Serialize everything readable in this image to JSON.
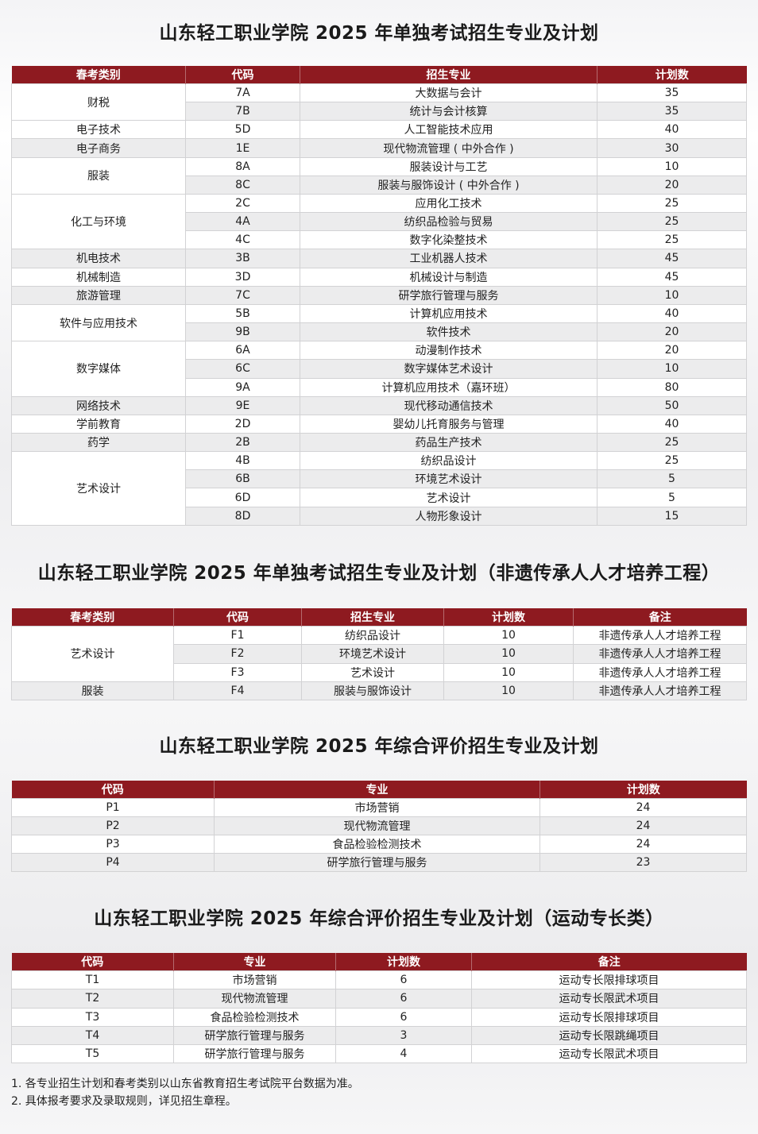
{
  "sections": [
    {
      "title": "山东轻工职业学院 2025 年单独考试招生专业及计划",
      "headers": [
        "春考类别",
        "代码",
        "招生专业",
        "计划数"
      ],
      "groups": [
        {
          "category": "财税",
          "items": [
            [
              "7A",
              "大数据与会计",
              "35"
            ],
            [
              "7B",
              "统计与会计核算",
              "35"
            ]
          ]
        },
        {
          "category": "电子技术",
          "items": [
            [
              "5D",
              "人工智能技术应用",
              "40"
            ]
          ]
        },
        {
          "category": "电子商务",
          "items": [
            [
              "1E",
              "现代物流管理 ( 中外合作 )",
              "30"
            ]
          ]
        },
        {
          "category": "服装",
          "items": [
            [
              "8A",
              "服装设计与工艺",
              "10"
            ],
            [
              "8C",
              "服装与服饰设计 ( 中外合作 )",
              "20"
            ]
          ]
        },
        {
          "category": "化工与环境",
          "items": [
            [
              "2C",
              "应用化工技术",
              "25"
            ],
            [
              "4A",
              "纺织品检验与贸易",
              "25"
            ],
            [
              "4C",
              "数字化染整技术",
              "25"
            ]
          ]
        },
        {
          "category": "机电技术",
          "items": [
            [
              "3B",
              "工业机器人技术",
              "45"
            ]
          ]
        },
        {
          "category": "机械制造",
          "items": [
            [
              "3D",
              "机械设计与制造",
              "45"
            ]
          ]
        },
        {
          "category": "旅游管理",
          "items": [
            [
              "7C",
              "研学旅行管理与服务",
              "10"
            ]
          ]
        },
        {
          "category": "软件与应用技术",
          "items": [
            [
              "5B",
              "计算机应用技术",
              "40"
            ],
            [
              "9B",
              "软件技术",
              "20"
            ]
          ]
        },
        {
          "category": "数字媒体",
          "items": [
            [
              "6A",
              "动漫制作技术",
              "20"
            ],
            [
              "6C",
              "数字媒体艺术设计",
              "10"
            ],
            [
              "9A",
              "计算机应用技术（嘉环班）",
              "80"
            ]
          ]
        },
        {
          "category": "网络技术",
          "items": [
            [
              "9E",
              "现代移动通信技术",
              "50"
            ]
          ]
        },
        {
          "category": "学前教育",
          "items": [
            [
              "2D",
              "婴幼儿托育服务与管理",
              "40"
            ]
          ]
        },
        {
          "category": "药学",
          "items": [
            [
              "2B",
              "药品生产技术",
              "25"
            ]
          ]
        },
        {
          "category": "艺术设计",
          "items": [
            [
              "4B",
              "纺织品设计",
              "25"
            ],
            [
              "6B",
              "环境艺术设计",
              "5"
            ],
            [
              "6D",
              "艺术设计",
              "5"
            ],
            [
              "8D",
              "人物形象设计",
              "15"
            ]
          ]
        }
      ]
    },
    {
      "title": "山东轻工职业学院 2025 年单独考试招生专业及计划（非遗传承人人才培养工程）",
      "headers": [
        "春考类别",
        "代码",
        "招生专业",
        "计划数",
        "备注"
      ],
      "groups": [
        {
          "category": "艺术设计",
          "items": [
            [
              "F1",
              "纺织品设计",
              "10",
              "非遗传承人人才培养工程"
            ],
            [
              "F2",
              "环境艺术设计",
              "10",
              "非遗传承人人才培养工程"
            ],
            [
              "F3",
              "艺术设计",
              "10",
              "非遗传承人人才培养工程"
            ]
          ]
        },
        {
          "category": "服装",
          "items": [
            [
              "F4",
              "服装与服饰设计",
              "10",
              "非遗传承人人才培养工程"
            ]
          ]
        }
      ]
    },
    {
      "title": "山东轻工职业学院 2025 年综合评价招生专业及计划",
      "headers": [
        "代码",
        "专业",
        "计划数"
      ],
      "rows": [
        [
          "P1",
          "市场营销",
          "24"
        ],
        [
          "P2",
          "现代物流管理",
          "24"
        ],
        [
          "P3",
          "食品检验检测技术",
          "24"
        ],
        [
          "P4",
          "研学旅行管理与服务",
          "23"
        ]
      ]
    },
    {
      "title": "山东轻工职业学院 2025 年综合评价招生专业及计划（运动专长类）",
      "headers": [
        "代码",
        "专业",
        "计划数",
        "备注"
      ],
      "rows": [
        [
          "T1",
          "市场营销",
          "6",
          "运动专长限排球项目"
        ],
        [
          "T2",
          "现代物流管理",
          "6",
          "运动专长限武术项目"
        ],
        [
          "T3",
          "食品检验检测技术",
          "6",
          "运动专长限排球项目"
        ],
        [
          "T4",
          "研学旅行管理与服务",
          "3",
          "运动专长限跳绳项目"
        ],
        [
          "T5",
          "研学旅行管理与服务",
          "4",
          "运动专长限武术项目"
        ]
      ]
    }
  ],
  "notes": [
    "1. 各专业招生计划和春考类别以山东省教育招生考试院平台数据为准。",
    "2. 具体报考要求及录取规则，详见招生章程。"
  ],
  "colors": {
    "header": "#8e1a20",
    "stripe": "#ececed"
  }
}
